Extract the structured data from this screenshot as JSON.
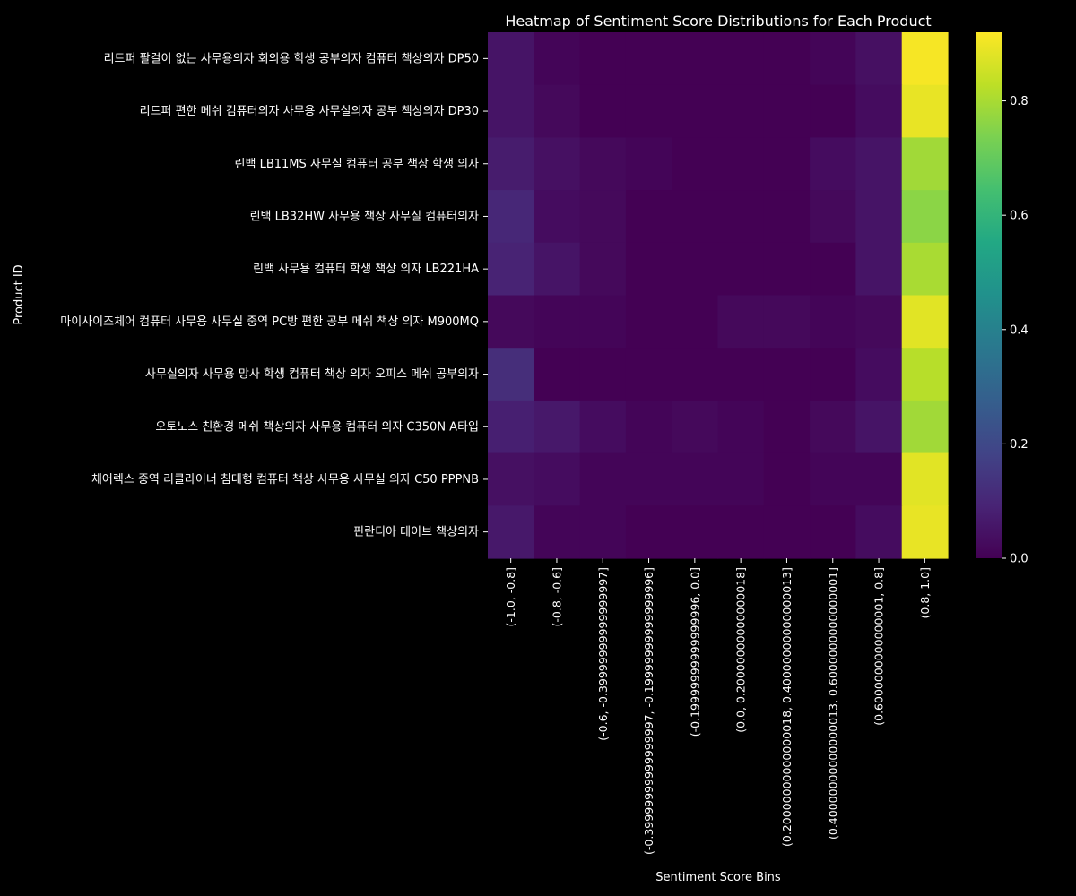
{
  "chart_data": {
    "type": "heatmap",
    "title": "Heatmap of Sentiment Score Distributions for Each Product",
    "xlabel": "Sentiment Score Bins",
    "ylabel": "Product ID",
    "colormap": "viridis",
    "colorbar": {
      "min": 0.0,
      "max": 0.92,
      "ticks": [
        "0.0",
        "0.2",
        "0.4",
        "0.6",
        "0.8"
      ],
      "tick_values": [
        0,
        0.2,
        0.4,
        0.6,
        0.8
      ]
    },
    "x_labels": [
      "(-1.0, -0.8]",
      "(-0.8, -0.6]",
      "(-0.6, -0.39999999999999997]",
      "(-0.39999999999999997, -0.19999999999999996]",
      "(-0.19999999999999996, 0.0]",
      "(0.0, 0.20000000000000018]",
      "(0.20000000000000018, 0.40000000000000013]",
      "(0.40000000000000013, 0.6000000000000001]",
      "(0.6000000000000001, 0.8]",
      "(0.8, 1.0]"
    ],
    "y_labels": [
      "리드퍼 팔걸이 없는 사무용의자 회의용 학생 공부의자 컴퓨터 책상의자 DP50",
      "리드퍼 편한 메쉬 컴퓨터의자 사무용 사무실의자 공부 책상의자 DP30",
      "린백 LB11MS 사무실 컴퓨터 공부 책상 학생 의자",
      "린백 LB32HW 사무용 책상 사무실 컴퓨터의자",
      "린백 사무용 컴퓨터 학생 책상 의자 LB221HA",
      "마이사이즈체어 컴퓨터 사무용 사무실 중역 PC방 편한 공부 메쉬 책상 의자 M900MQ",
      "사무실의자 사무용 망사 학생 컴퓨터 책상 의자 오피스 메쉬 공부의자",
      "오토노스 친환경 메쉬 책상의자 사무용 컴퓨터 의자 C350N A타입",
      "체어렉스 중역 리클라이너 침대형 컴퓨터 책상 사무용 사무실 의자 C50 PPPNB",
      "핀란디아 데이브 책상의자"
    ],
    "values": [
      [
        0.05,
        0.01,
        0.0,
        0.0,
        0.0,
        0.0,
        0.0,
        0.01,
        0.04,
        0.91
      ],
      [
        0.05,
        0.02,
        0.0,
        0.0,
        0.0,
        0.0,
        0.0,
        0.0,
        0.03,
        0.89
      ],
      [
        0.07,
        0.04,
        0.02,
        0.01,
        0.0,
        0.0,
        0.0,
        0.03,
        0.05,
        0.79
      ],
      [
        0.1,
        0.03,
        0.02,
        0.0,
        0.0,
        0.0,
        0.0,
        0.02,
        0.05,
        0.76
      ],
      [
        0.09,
        0.05,
        0.02,
        0.0,
        0.0,
        0.0,
        0.0,
        0.0,
        0.05,
        0.8
      ],
      [
        0.02,
        0.01,
        0.01,
        0.0,
        0.0,
        0.02,
        0.02,
        0.01,
        0.02,
        0.88
      ],
      [
        0.12,
        0.0,
        0.0,
        0.0,
        0.0,
        0.0,
        0.0,
        0.0,
        0.03,
        0.82
      ],
      [
        0.08,
        0.06,
        0.03,
        0.01,
        0.02,
        0.01,
        0.0,
        0.02,
        0.05,
        0.79
      ],
      [
        0.04,
        0.03,
        0.01,
        0.01,
        0.01,
        0.01,
        0.0,
        0.01,
        0.01,
        0.88
      ],
      [
        0.06,
        0.01,
        0.01,
        0.0,
        0.0,
        0.0,
        0.0,
        0.0,
        0.03,
        0.89
      ]
    ]
  }
}
